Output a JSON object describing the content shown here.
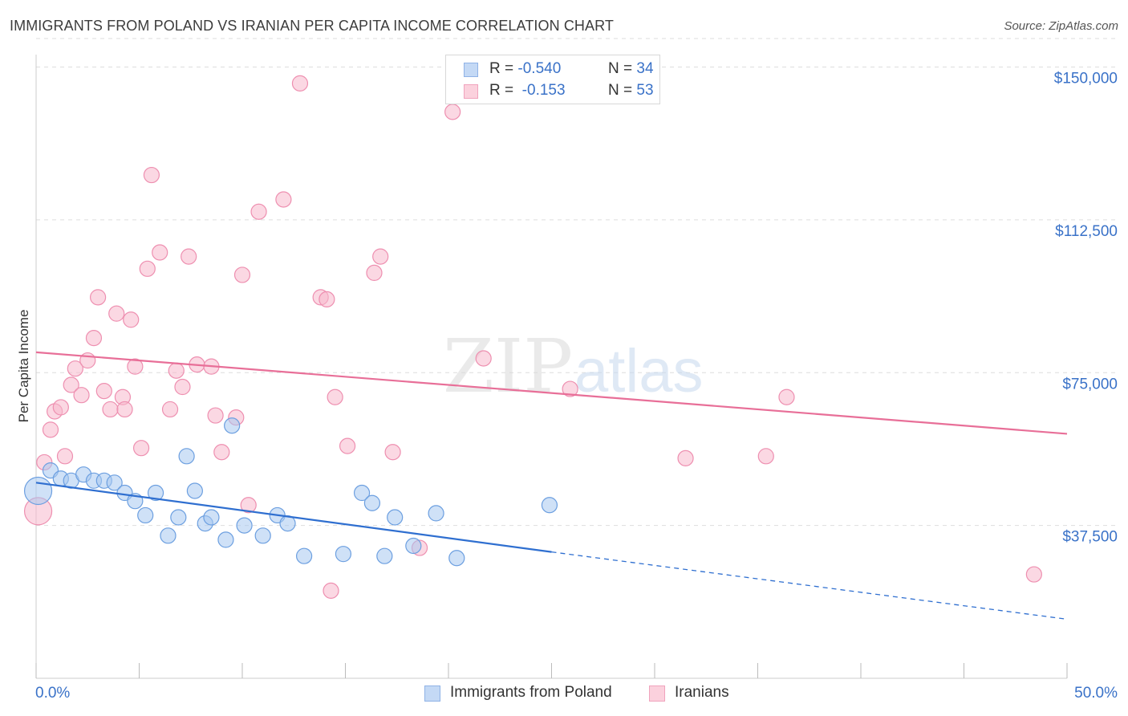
{
  "header": {
    "title": "IMMIGRANTS FROM POLAND VS IRANIAN PER CAPITA INCOME CORRELATION CHART",
    "source": "Source: ZipAtlas.com"
  },
  "watermark": {
    "zip": "ZIP",
    "atlas": "atlas"
  },
  "legend_top": [
    {
      "swatch": "#aecbf0",
      "r_label": "R =",
      "r_value": "-0.540",
      "n_label": "N =",
      "n_value": "34"
    },
    {
      "swatch": "#f9bcd0",
      "r_label": "R =",
      "r_value": " -0.153",
      "n_label": "N =",
      "n_value": "53"
    }
  ],
  "legend_bottom": [
    {
      "swatch": "#c4d9f5",
      "label": "Immigrants from Poland"
    },
    {
      "swatch": "#fbd1dd",
      "label": "Iranians"
    }
  ],
  "colors": {
    "poland_fill": "#a8c8f0",
    "poland_stroke": "#6c9fe0",
    "poland_line": "#2f6fd0",
    "iran_fill": "#f7b8cc",
    "iran_stroke": "#ee8fb0",
    "iran_line": "#e86f98",
    "tick_label": "#3a72c8",
    "grid": "#dddddd"
  },
  "chart_data": {
    "type": "scatter",
    "title": "IMMIGRANTS FROM POLAND VS IRANIAN PER CAPITA INCOME CORRELATION CHART",
    "xlabel": "",
    "ylabel": "Per Capita Income",
    "xlim": [
      0,
      50
    ],
    "ylim": [
      0,
      157000
    ],
    "x_ticks": [
      0,
      5,
      10,
      15,
      20,
      25,
      30,
      35,
      40,
      45,
      50
    ],
    "x_tick_labels": [
      {
        "value": 0,
        "label": "0.0%",
        "anchor": "start"
      },
      {
        "value": 50,
        "label": "50.0%",
        "anchor": "end"
      }
    ],
    "y_ticks": [
      37500,
      75000,
      112500,
      150000
    ],
    "y_tick_labels": [
      "$37,500",
      "$75,000",
      "$112,500",
      "$150,000"
    ],
    "grid": true,
    "legend_position": "top-center",
    "series": [
      {
        "name": "Immigrants from Poland",
        "r": -0.54,
        "n": 34,
        "trend": {
          "x0": 0,
          "y0": 48000,
          "x1": 25,
          "y1": 31000,
          "x_dash_end": 50,
          "y_dash_end": 14500
        },
        "points": [
          [
            0.1,
            46000,
            "large"
          ],
          [
            0.7,
            51000
          ],
          [
            1.2,
            49000
          ],
          [
            1.7,
            48500
          ],
          [
            2.3,
            50000
          ],
          [
            2.8,
            48500
          ],
          [
            3.3,
            48500
          ],
          [
            3.8,
            48000
          ],
          [
            4.3,
            45500
          ],
          [
            4.8,
            43500
          ],
          [
            5.3,
            40000
          ],
          [
            5.8,
            45500
          ],
          [
            6.4,
            35000
          ],
          [
            6.9,
            39500
          ],
          [
            7.3,
            54500
          ],
          [
            7.7,
            46000
          ],
          [
            8.2,
            38000
          ],
          [
            8.5,
            39500
          ],
          [
            9.2,
            34000
          ],
          [
            9.5,
            62000
          ],
          [
            10.1,
            37500
          ],
          [
            11.0,
            35000
          ],
          [
            11.7,
            40000
          ],
          [
            12.2,
            38000
          ],
          [
            13.0,
            30000
          ],
          [
            14.9,
            30500
          ],
          [
            15.8,
            45500
          ],
          [
            16.3,
            43000
          ],
          [
            16.9,
            30000
          ],
          [
            17.4,
            39500
          ],
          [
            18.3,
            32500
          ],
          [
            19.4,
            40500
          ],
          [
            20.4,
            29500
          ],
          [
            24.9,
            42500
          ]
        ]
      },
      {
        "name": "Iranians",
        "r": -0.153,
        "n": 53,
        "trend": {
          "x0": 0,
          "y0": 80000,
          "x1": 50,
          "y1": 60000
        },
        "points": [
          [
            0.1,
            41000,
            "large"
          ],
          [
            0.4,
            53000
          ],
          [
            0.7,
            61000
          ],
          [
            0.9,
            65500
          ],
          [
            1.2,
            66500
          ],
          [
            1.4,
            54500
          ],
          [
            1.7,
            72000
          ],
          [
            1.9,
            76000
          ],
          [
            2.2,
            69500
          ],
          [
            2.5,
            78000
          ],
          [
            2.8,
            83500
          ],
          [
            3.0,
            93500
          ],
          [
            3.3,
            70500
          ],
          [
            3.6,
            66000
          ],
          [
            3.9,
            89500
          ],
          [
            4.2,
            69000
          ],
          [
            4.3,
            66000
          ],
          [
            4.6,
            88000
          ],
          [
            4.8,
            76500
          ],
          [
            5.1,
            56500
          ],
          [
            5.4,
            100500
          ],
          [
            5.6,
            123500
          ],
          [
            6.0,
            104500
          ],
          [
            6.5,
            66000
          ],
          [
            6.8,
            75500
          ],
          [
            7.1,
            71500
          ],
          [
            7.4,
            103500
          ],
          [
            7.8,
            77000
          ],
          [
            8.5,
            76500
          ],
          [
            8.7,
            64500
          ],
          [
            9.0,
            55500
          ],
          [
            9.7,
            64000
          ],
          [
            10.0,
            99000
          ],
          [
            10.3,
            42500
          ],
          [
            10.8,
            114500
          ],
          [
            12.0,
            117500
          ],
          [
            12.8,
            146000
          ],
          [
            13.8,
            93500
          ],
          [
            14.1,
            93000
          ],
          [
            14.3,
            21500
          ],
          [
            14.5,
            69000
          ],
          [
            15.1,
            57000
          ],
          [
            16.4,
            99500
          ],
          [
            16.7,
            103500
          ],
          [
            17.3,
            55500
          ],
          [
            18.6,
            32000
          ],
          [
            20.2,
            139000
          ],
          [
            21.7,
            78500
          ],
          [
            25.9,
            71000
          ],
          [
            31.5,
            54000
          ],
          [
            35.4,
            54500
          ],
          [
            36.4,
            69000
          ],
          [
            48.4,
            25500
          ]
        ]
      }
    ]
  }
}
